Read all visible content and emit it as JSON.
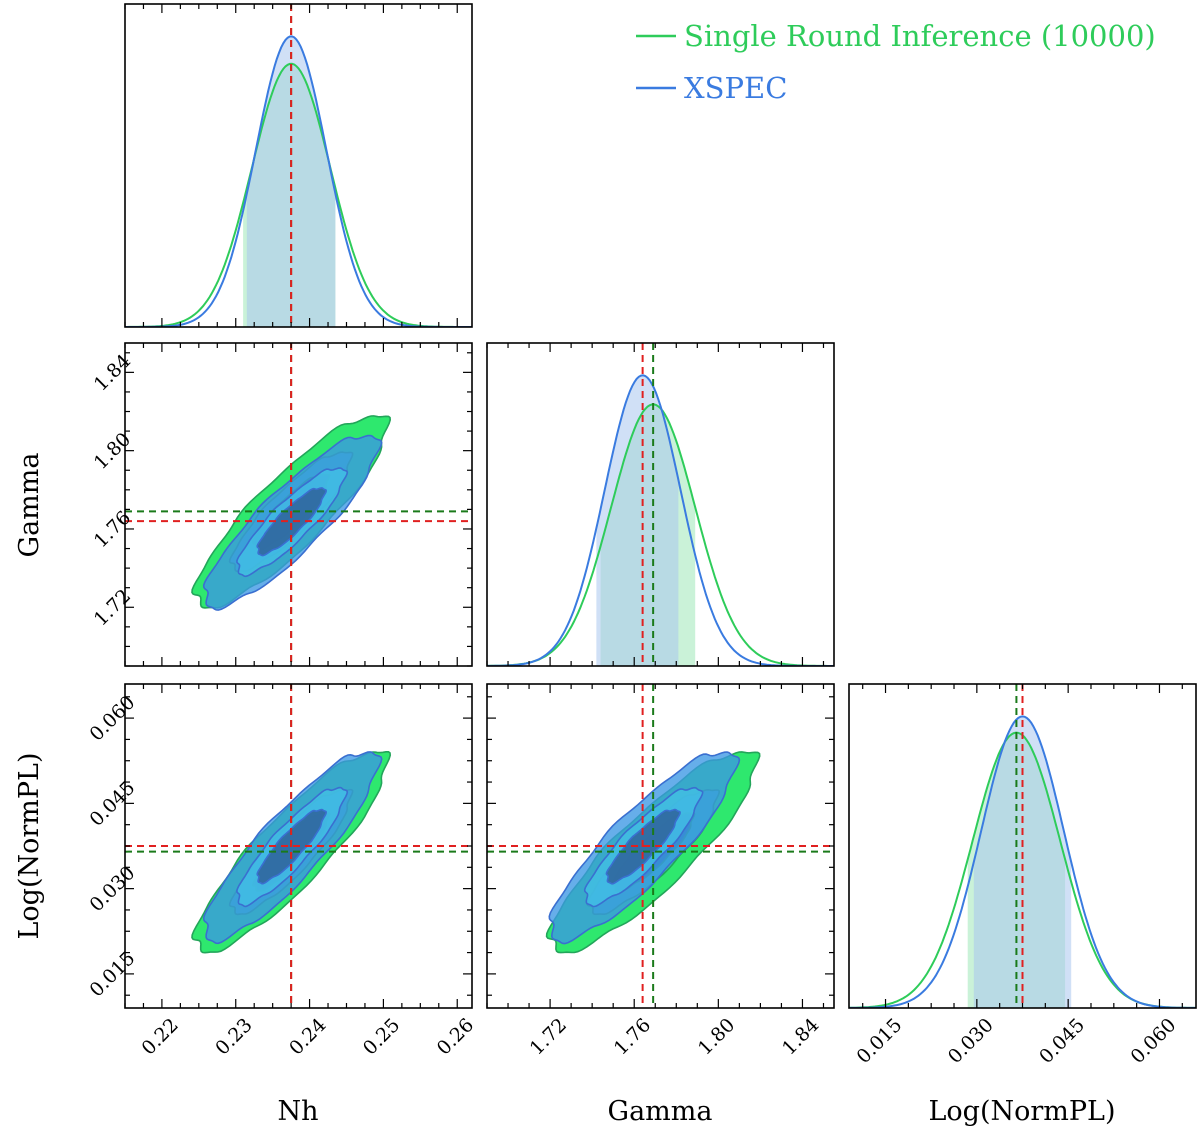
{
  "chart_data": {
    "type": "corner",
    "parameters": [
      "Nh",
      "Gamma",
      "Log(NormPL)"
    ],
    "x_labels": [
      "Nh",
      "Gamma",
      "Log(NormPL)"
    ],
    "y_labels": [
      "",
      "Gamma",
      "Log(NormPL)"
    ],
    "ranges": {
      "Nh": [
        0.215,
        0.262
      ],
      "Gamma": [
        1.69,
        1.855
      ],
      "Log(NormPL)": [
        0.009,
        0.066
      ]
    },
    "ticks": {
      "Nh": [
        "0.22",
        "0.23",
        "0.24",
        "0.25",
        "0.26"
      ],
      "Gamma": [
        "1.72",
        "1.76",
        "1.80",
        "1.84"
      ],
      "Log(NormPL)": [
        "0.015",
        "0.030",
        "0.045",
        "0.060"
      ]
    },
    "series": [
      {
        "name": "Single Round Inference (10000)",
        "color": "#2ecc5a",
        "fill_outer": "#2ee86e",
        "fill_mid": "#36c3b0",
        "fill_inner": "#2b6aa0",
        "mean": {
          "Nh": 0.2375,
          "Gamma": 1.769,
          "Log(NormPL)": 0.0365
        },
        "sigma": {
          "Nh": 0.0053,
          "Gamma": 0.02,
          "Log(NormPL)": 0.0072
        },
        "correlation": {
          "Nh_Gamma": 0.87,
          "Nh_Log(NormPL)": 0.88,
          "Gamma_Log(NormPL)": 0.87
        },
        "interval": {
          "Nh": [
            0.231,
            0.2435
          ],
          "Gamma": [
            1.744,
            1.789
          ],
          "Log(NormPL)": [
            0.0285,
            0.0445
          ]
        },
        "truth_line_color": "#1a7a1a"
      },
      {
        "name": "XSPEC",
        "color": "#3a7be0",
        "fill_outer": "#3b97e4",
        "fill_mid": "#42c0e6",
        "fill_inner": "#2d5a94",
        "mean": {
          "Nh": 0.2375,
          "Gamma": 1.764,
          "Log(NormPL)": 0.0375
        },
        "sigma": {
          "Nh": 0.0048,
          "Gamma": 0.018,
          "Log(NormPL)": 0.0068
        },
        "correlation": {
          "Nh_Gamma": 0.87,
          "Nh_Log(NormPL)": 0.88,
          "Gamma_Log(NormPL)": 0.87
        },
        "interval": {
          "Nh": [
            0.2315,
            0.2435
          ],
          "Gamma": [
            1.742,
            1.781
          ],
          "Log(NormPL)": [
            0.0295,
            0.0455
          ]
        },
        "truth_line_color": "#e02020"
      }
    ],
    "legend": {
      "position": "top-right"
    },
    "grid": false
  }
}
